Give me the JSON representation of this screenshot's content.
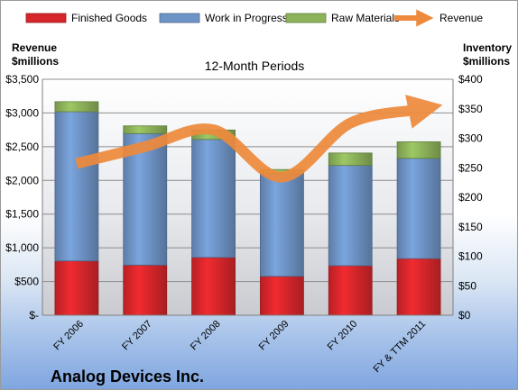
{
  "chart_data": {
    "type": "bar",
    "subtitle": "12-Month Periods",
    "categories": [
      "FY 2006",
      "FY 2007",
      "FY 2008",
      "FY 2009",
      "FY 2010",
      "FY & TTM 2011"
    ],
    "series": [
      {
        "name": "Finished Goods",
        "axis": "right",
        "stacked": true,
        "color": "#d7262b",
        "values": [
          92,
          85,
          98,
          66,
          84,
          96
        ]
      },
      {
        "name": "Work in Progress",
        "axis": "right",
        "stacked": true,
        "color": "#6e93c6",
        "values": [
          253,
          223,
          200,
          174,
          170,
          170
        ]
      },
      {
        "name": "Raw Materials",
        "axis": "right",
        "stacked": true,
        "color": "#8db35a",
        "values": [
          17,
          13,
          16,
          7,
          21,
          28
        ]
      },
      {
        "name": "Revenue",
        "axis": "left",
        "type": "line",
        "color": "#ee8a3c",
        "values": [
          2250,
          2500,
          2750,
          2050,
          2850,
          3050
        ]
      }
    ],
    "left_axis": {
      "label_lines": [
        "Revenue",
        "$millions"
      ],
      "ylim": [
        0,
        3500
      ],
      "ticks": [
        0,
        500,
        1000,
        1500,
        2000,
        2500,
        3000,
        3500
      ],
      "tick_labels": [
        "$-",
        "$500",
        "$1,000",
        "$1,500",
        "$2,000",
        "$2,500",
        "$3,000",
        "$3,500"
      ]
    },
    "right_axis": {
      "label_lines": [
        "Inventory",
        "$millions"
      ],
      "ylim": [
        0,
        400
      ],
      "ticks": [
        0,
        50,
        100,
        150,
        200,
        250,
        300,
        350,
        400
      ],
      "tick_labels": [
        "$0",
        "$50",
        "$100",
        "$150",
        "$200",
        "$250",
        "$300",
        "$350",
        "$400"
      ]
    },
    "grid": true,
    "legend_position": "top",
    "company": "Analog Devices Inc."
  }
}
